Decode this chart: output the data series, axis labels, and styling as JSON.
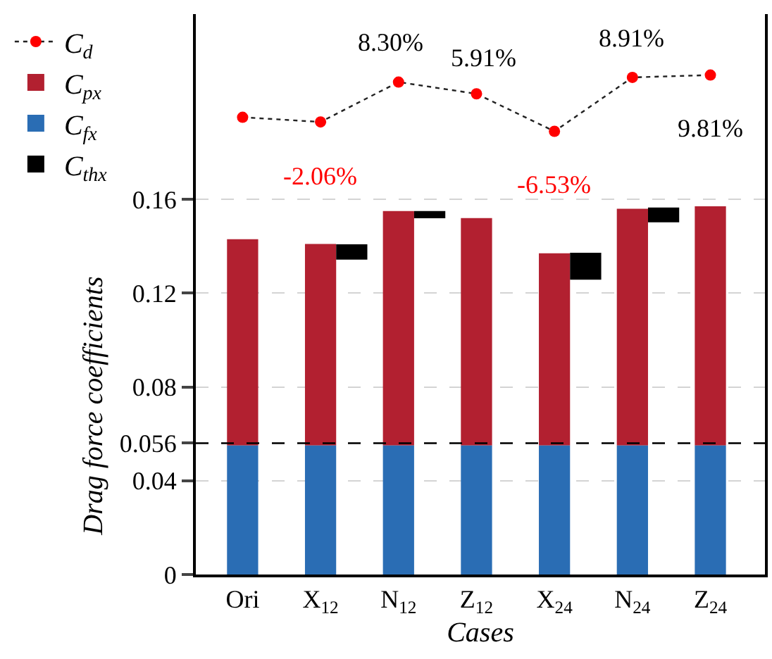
{
  "chart_data": {
    "type": "bar",
    "xlabel": "Cases",
    "ylabel": "Drag force coefficients",
    "categories": [
      "Ori",
      "X$_{12}$",
      "N$_{12}$",
      "Z$_{12}$",
      "X$_{24}$",
      "N$_{24}$",
      "Z$_{24}$"
    ],
    "series": [
      {
        "name": "C$_{d}$",
        "type": "line",
        "color": "#ff0000",
        "marker": "circle",
        "line_style": "dotted",
        "values": [
          0.195,
          0.193,
          0.21,
          0.205,
          0.189,
          0.212,
          0.213
        ]
      },
      {
        "name": "C$_{px}$",
        "color": "#b22030",
        "base": [
          0.055,
          0.055,
          0.055,
          0.055,
          0.055,
          0.055,
          0.055
        ],
        "values": [
          0.088,
          0.086,
          0.1,
          0.097,
          0.082,
          0.101,
          0.102
        ]
      },
      {
        "name": "C$_{fx}$",
        "color": "#2a6db4",
        "values": [
          0.055,
          0.055,
          0.055,
          0.055,
          0.055,
          0.055,
          0.055
        ]
      },
      {
        "name": "C$_{thx}$",
        "color": "#000000",
        "base": [
          null,
          0.1343,
          0.1519,
          null,
          0.1257,
          0.1502,
          null
        ],
        "values": [
          null,
          0.0065,
          0.0031,
          null,
          0.0115,
          0.0063,
          null
        ]
      }
    ],
    "ylim": [
      0,
      0.239
    ],
    "yticks": [
      0,
      0.04,
      0.056,
      0.08,
      0.12,
      0.16
    ],
    "grid": "y",
    "legend": "top left",
    "ref_lines": [
      {
        "axis": "y",
        "value": 0.056,
        "color": "#000000",
        "line_style": "dashed"
      }
    ],
    "annotations": [
      "-2.06%",
      "8.30%",
      "5.91%",
      "-6.53%",
      "8.91%",
      "9.81%"
    ]
  }
}
